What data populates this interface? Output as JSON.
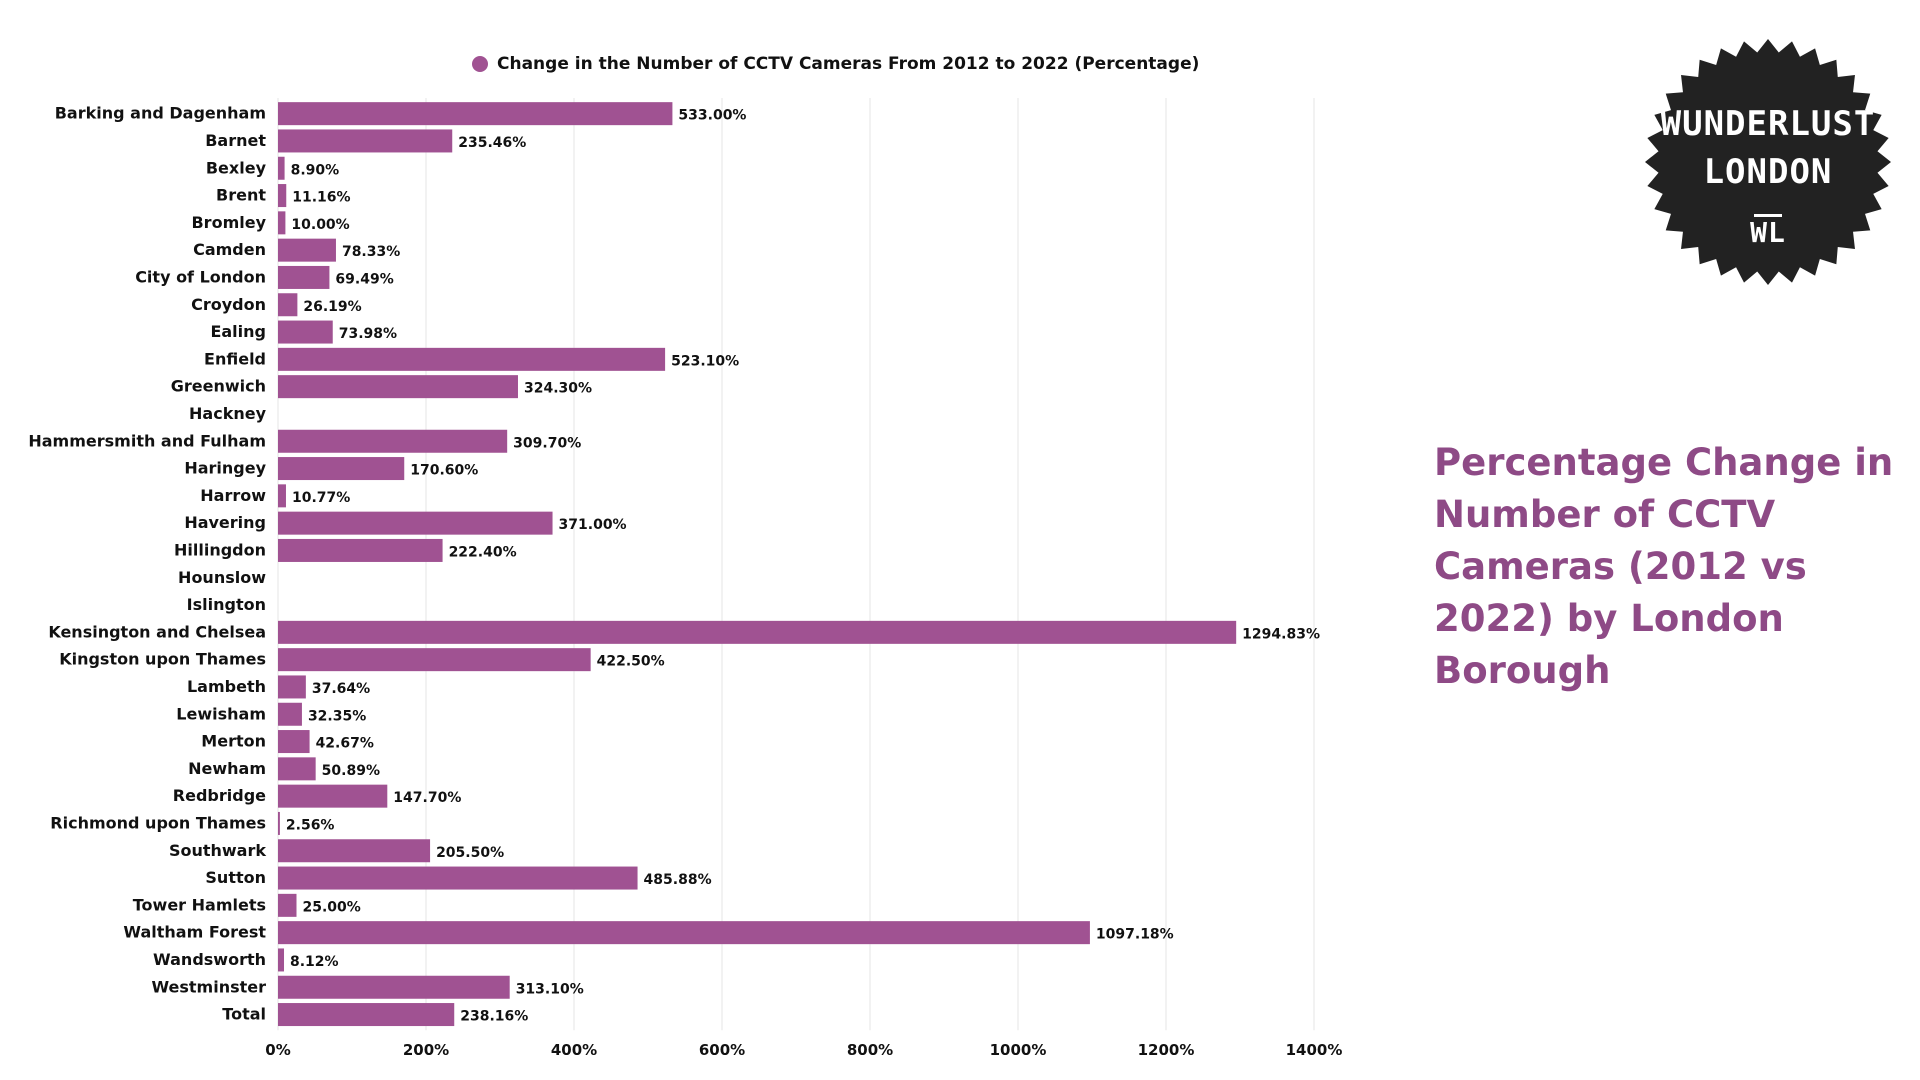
{
  "colors": {
    "bar": "#a05292",
    "title": "#8e4a86",
    "badge_bg": "#222222",
    "grid": "#e6e6e6",
    "text": "#111111"
  },
  "legend": {
    "label": "Change in the Number of CCTV Cameras From 2012 to 2022 (Percentage)"
  },
  "side_title": "Percentage Change in Number of CCTV Cameras (2012 vs 2022) by London Borough",
  "badge": {
    "line1": "WUNDERLUST",
    "line2": "LONDON",
    "line3": "WL"
  },
  "chart_data": {
    "type": "bar",
    "orientation": "horizontal",
    "xlim": [
      0,
      1400
    ],
    "xticks": [
      "0%",
      "200%",
      "400%",
      "600%",
      "800%",
      "1000%",
      "1200%",
      "1400%"
    ],
    "xtick_values": [
      0,
      200,
      400,
      600,
      800,
      1000,
      1200,
      1400
    ],
    "grid": true,
    "legend_placement": "top",
    "series": [
      {
        "name": "Change in the Number of CCTV Cameras From 2012 to 2022 (Percentage)"
      }
    ],
    "categories": [
      "Barking and Dagenham",
      "Barnet",
      "Bexley",
      "Brent",
      "Bromley",
      "Camden",
      "City of London",
      "Croydon",
      "Ealing",
      "Enfield",
      "Greenwich",
      "Hackney",
      "Hammersmith and Fulham",
      "Haringey",
      "Harrow",
      "Havering",
      "Hillingdon",
      "Hounslow",
      "Islington",
      "Kensington and Chelsea",
      "Kingston upon Thames",
      "Lambeth",
      "Lewisham",
      "Merton",
      "Newham",
      "Redbridge",
      "Richmond upon Thames",
      "Southwark",
      "Sutton",
      "Tower Hamlets",
      "Waltham Forest",
      "Wandsworth",
      "Westminster",
      "Total"
    ],
    "values": [
      533.0,
      235.46,
      8.9,
      11.16,
      10.0,
      78.33,
      69.49,
      26.19,
      73.98,
      523.1,
      324.3,
      null,
      309.7,
      170.6,
      10.77,
      371.0,
      222.4,
      null,
      null,
      1294.83,
      422.5,
      37.64,
      32.35,
      42.67,
      50.89,
      147.7,
      2.56,
      205.5,
      485.88,
      25.0,
      1097.18,
      8.12,
      313.1,
      238.16
    ],
    "data_labels": [
      "533.00%",
      "235.46%",
      "8.90%",
      "11.16%",
      "10.00%",
      "78.33%",
      "69.49%",
      "26.19%",
      "73.98%",
      "523.10%",
      "324.30%",
      "",
      "309.70%",
      "170.60%",
      "10.77%",
      "371.00%",
      "222.40%",
      "",
      "",
      "1294.83%",
      "422.50%",
      "37.64%",
      "32.35%",
      "42.67%",
      "50.89%",
      "147.70%",
      "2.56%",
      "205.50%",
      "485.88%",
      "25.00%",
      "1097.18%",
      "8.12%",
      "313.10%",
      "238.16%"
    ]
  }
}
